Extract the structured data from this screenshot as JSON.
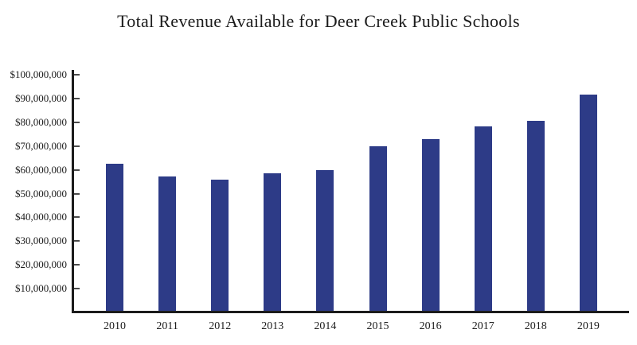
{
  "chart_data": {
    "type": "bar",
    "title": "Total Revenue Available for Deer Creek Public Schools",
    "categories": [
      "2010",
      "2011",
      "2012",
      "2013",
      "2014",
      "2015",
      "2016",
      "2017",
      "2018",
      "2019"
    ],
    "values": [
      62500000,
      57300000,
      55700000,
      58500000,
      59800000,
      70000000,
      73000000,
      78200000,
      80500000,
      91600000
    ],
    "xlabel": "",
    "ylabel": "",
    "ylim": [
      0,
      100000000
    ],
    "ytick_step": 10000000,
    "ytick_labels_top_to_bottom": [
      "$100,000,000",
      "$90,000,000",
      "$80,000,000",
      "$70,000,000",
      "$60,000,000",
      "$50,000,000",
      "$40,000,000",
      "$30,000,000",
      "$20,000,000",
      "$10,000,000"
    ],
    "grid": false,
    "legend": null,
    "bar_color": "#2d3b87",
    "axis_color": "#1c1c1c",
    "text_color": "#1c1c1c"
  }
}
